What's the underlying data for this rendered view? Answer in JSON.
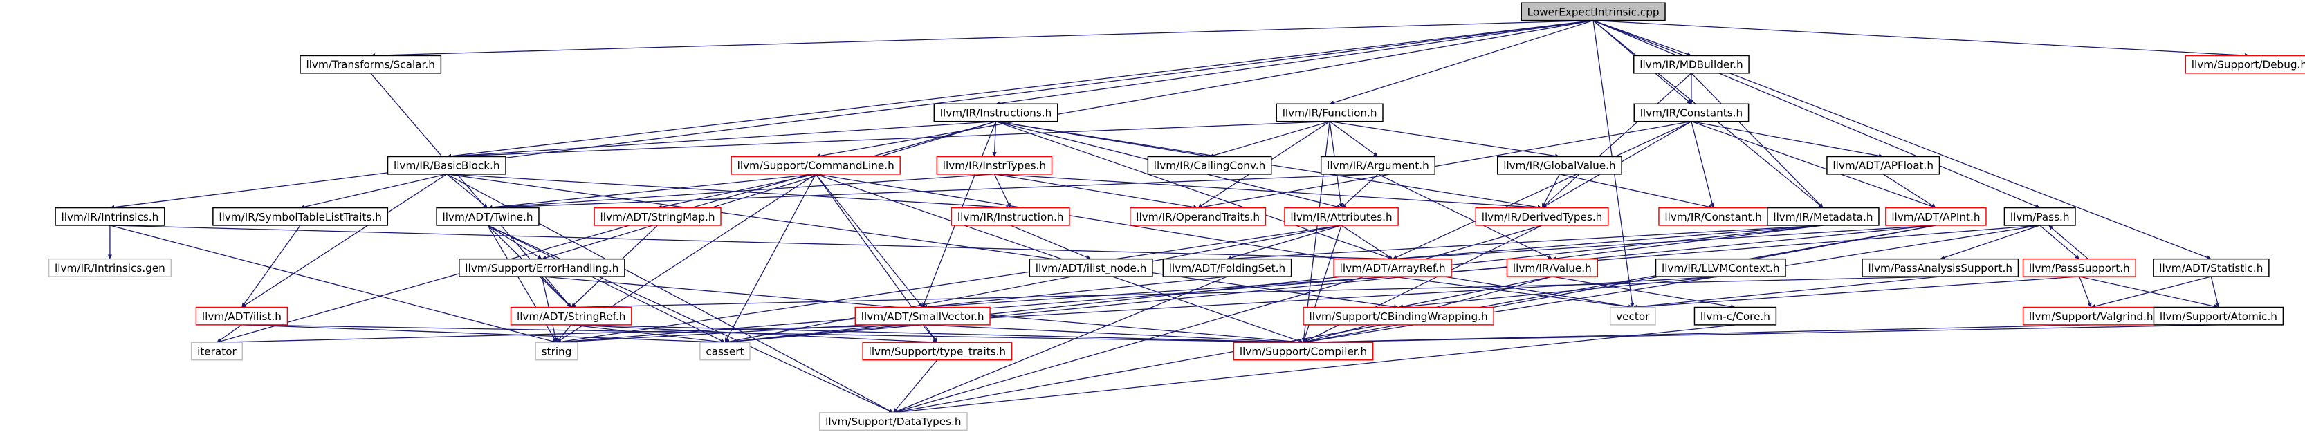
{
  "nodes": [
    {
      "label": "LowerExpectIntrinsic.cpp",
      "border": "#000000",
      "fill": "#bfbfbf"
    },
    {
      "label": "llvm/Transforms/Scalar.h",
      "border": "#000000"
    },
    {
      "label": "llvm/IR/MDBuilder.h",
      "border": "#000000"
    },
    {
      "label": "llvm/Support/Debug.h",
      "border": "#ff0000"
    },
    {
      "label": "llvm/IR/Instructions.h",
      "border": "#000000"
    },
    {
      "label": "llvm/IR/Function.h",
      "border": "#000000"
    },
    {
      "label": "llvm/IR/Constants.h",
      "border": "#000000"
    },
    {
      "label": "llvm/IR/BasicBlock.h",
      "border": "#000000"
    },
    {
      "label": "llvm/Support/CommandLine.h",
      "border": "#ff0000"
    },
    {
      "label": "llvm/IR/InstrTypes.h",
      "border": "#ff0000"
    },
    {
      "label": "llvm/IR/CallingConv.h",
      "border": "#000000"
    },
    {
      "label": "llvm/IR/Argument.h",
      "border": "#000000"
    },
    {
      "label": "llvm/IR/GlobalValue.h",
      "border": "#000000"
    },
    {
      "label": "llvm/ADT/APFloat.h",
      "border": "#000000"
    },
    {
      "label": "llvm/IR/Intrinsics.h",
      "border": "#000000"
    },
    {
      "label": "llvm/IR/SymbolTableListTraits.h",
      "border": "#000000"
    },
    {
      "label": "llvm/ADT/Twine.h",
      "border": "#000000"
    },
    {
      "label": "llvm/ADT/StringMap.h",
      "border": "#ff0000"
    },
    {
      "label": "llvm/IR/Instruction.h",
      "border": "#ff0000"
    },
    {
      "label": "llvm/IR/OperandTraits.h",
      "border": "#ff0000"
    },
    {
      "label": "llvm/IR/Attributes.h",
      "border": "#ff0000"
    },
    {
      "label": "llvm/IR/DerivedTypes.h",
      "border": "#ff0000"
    },
    {
      "label": "llvm/IR/Constant.h",
      "border": "#ff0000"
    },
    {
      "label": "llvm/IR/Metadata.h",
      "border": "#000000"
    },
    {
      "label": "llvm/ADT/APInt.h",
      "border": "#ff0000"
    },
    {
      "label": "llvm/Pass.h",
      "border": "#000000"
    },
    {
      "label": "llvm/IR/Intrinsics.gen",
      "border": "#bfbfbf"
    },
    {
      "label": "llvm/Support/ErrorHandling.h",
      "border": "#000000"
    },
    {
      "label": "llvm/ADT/ilist_node.h",
      "border": "#000000"
    },
    {
      "label": "llvm/ADT/FoldingSet.h",
      "border": "#000000"
    },
    {
      "label": "llvm/ADT/ArrayRef.h",
      "border": "#ff0000"
    },
    {
      "label": "llvm/IR/Value.h",
      "border": "#ff0000"
    },
    {
      "label": "llvm/IR/LLVMContext.h",
      "border": "#000000"
    },
    {
      "label": "llvm/PassAnalysisSupport.h",
      "border": "#000000"
    },
    {
      "label": "llvm/PassSupport.h",
      "border": "#ff0000"
    },
    {
      "label": "llvm/ADT/Statistic.h",
      "border": "#000000"
    },
    {
      "label": "llvm/ADT/ilist.h",
      "border": "#ff0000"
    },
    {
      "label": "llvm/ADT/StringRef.h",
      "border": "#ff0000"
    },
    {
      "label": "llvm/ADT/SmallVector.h",
      "border": "#ff0000"
    },
    {
      "label": "llvm/Support/CBindingWrapping.h",
      "border": "#ff0000"
    },
    {
      "label": "vector",
      "border": "#bfbfbf"
    },
    {
      "label": "llvm-c/Core.h",
      "border": "#000000"
    },
    {
      "label": "llvm/Support/Valgrind.h",
      "border": "#ff0000"
    },
    {
      "label": "llvm/Support/Atomic.h",
      "border": "#000000"
    },
    {
      "label": "iterator",
      "border": "#bfbfbf"
    },
    {
      "label": "string",
      "border": "#bfbfbf"
    },
    {
      "label": "cassert",
      "border": "#bfbfbf"
    },
    {
      "label": "llvm/Support/type_traits.h",
      "border": "#ff0000"
    },
    {
      "label": "llvm/Support/Compiler.h",
      "border": "#ff0000"
    },
    {
      "label": "llvm/Support/DataTypes.h",
      "border": "#bfbfbf"
    }
  ]
}
